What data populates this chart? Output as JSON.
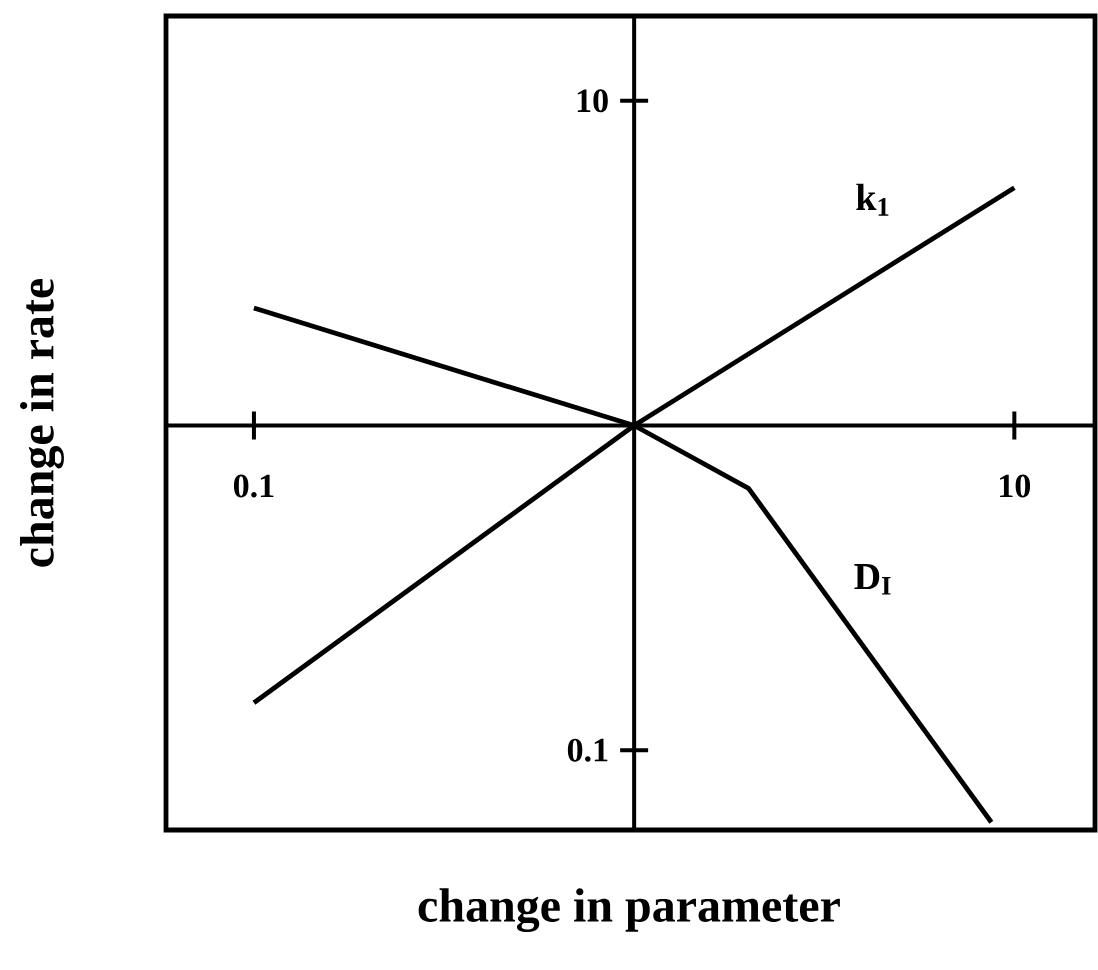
{
  "chart_data": {
    "type": "line",
    "xlabel": "change in parameter",
    "ylabel": "change in rate",
    "log": "xy",
    "xlim": [
      0.058,
      16.2
    ],
    "ylim": [
      0.056,
      18.5
    ],
    "xticks": [
      0.1,
      10
    ],
    "yticks": [
      0.1,
      10
    ],
    "grid": false,
    "legend": false,
    "marker": "none",
    "line_style": "solid",
    "series": [
      {
        "name": "k$_{1}$",
        "color": "#000000",
        "x": [
          0.1,
          1,
          10
        ],
        "values": [
          0.14,
          1,
          5.4
        ]
      },
      {
        "name": "D$_{I}$",
        "color": "#000000",
        "x": [
          0.1,
          1,
          2.0,
          8.7
        ],
        "values": [
          2.3,
          1,
          0.64,
          0.06
        ]
      }
    ]
  }
}
